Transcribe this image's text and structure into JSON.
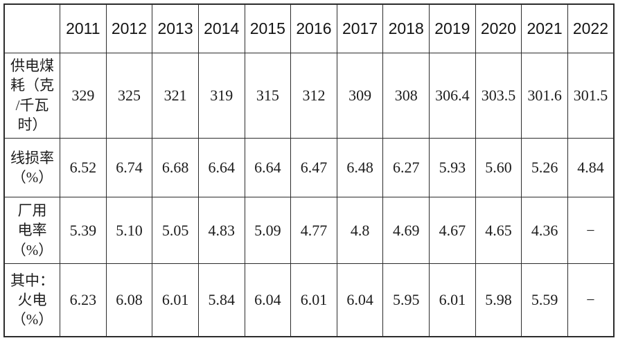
{
  "colors": {
    "background": "#ffffff",
    "border": "#2b2b2b",
    "text": "#1c1c1c"
  },
  "table": {
    "corner_label": "",
    "columns": [
      "2011",
      "2012",
      "2013",
      "2014",
      "2015",
      "2016",
      "2017",
      "2018",
      "2019",
      "2020",
      "2021",
      "2022"
    ],
    "rows": [
      {
        "label": "供电煤\n耗（克\n/千瓦\n时）",
        "values": [
          "329",
          "325",
          "321",
          "319",
          "315",
          "312",
          "309",
          "308",
          "306.4",
          "303.5",
          "301.6",
          "301.5"
        ]
      },
      {
        "label": "线损率\n（%）",
        "values": [
          "6.52",
          "6.74",
          "6.68",
          "6.64",
          "6.64",
          "6.47",
          "6.48",
          "6.27",
          "5.93",
          "5.60",
          "5.26",
          "4.84"
        ]
      },
      {
        "label": "厂用\n电率\n（%）",
        "values": [
          "5.39",
          "5.10",
          "5.05",
          "4.83",
          "5.09",
          "4.77",
          "4.8",
          "4.69",
          "4.67",
          "4.65",
          "4.36",
          "−"
        ]
      },
      {
        "label": "其中：\n火电\n（%）",
        "values": [
          "6.23",
          "6.08",
          "6.01",
          "5.84",
          "6.04",
          "6.01",
          "6.04",
          "5.95",
          "6.01",
          "5.98",
          "5.59",
          "−"
        ]
      }
    ]
  },
  "chart_data": {
    "type": "table",
    "categories": [
      "2011",
      "2012",
      "2013",
      "2014",
      "2015",
      "2016",
      "2017",
      "2018",
      "2019",
      "2020",
      "2021",
      "2022"
    ],
    "series": [
      {
        "name": "供电煤耗（克/千瓦时）",
        "values": [
          329,
          325,
          321,
          319,
          315,
          312,
          309,
          308,
          306.4,
          303.5,
          301.6,
          301.5
        ]
      },
      {
        "name": "线损率（%）",
        "values": [
          6.52,
          6.74,
          6.68,
          6.64,
          6.64,
          6.47,
          6.48,
          6.27,
          5.93,
          5.6,
          5.26,
          4.84
        ]
      },
      {
        "name": "厂用电率（%）",
        "values": [
          5.39,
          5.1,
          5.05,
          4.83,
          5.09,
          4.77,
          4.8,
          4.69,
          4.67,
          4.65,
          4.36,
          null
        ]
      },
      {
        "name": "其中：火电（%）",
        "values": [
          6.23,
          6.08,
          6.01,
          5.84,
          6.04,
          6.01,
          6.04,
          5.95,
          6.01,
          5.98,
          5.59,
          null
        ]
      }
    ]
  }
}
